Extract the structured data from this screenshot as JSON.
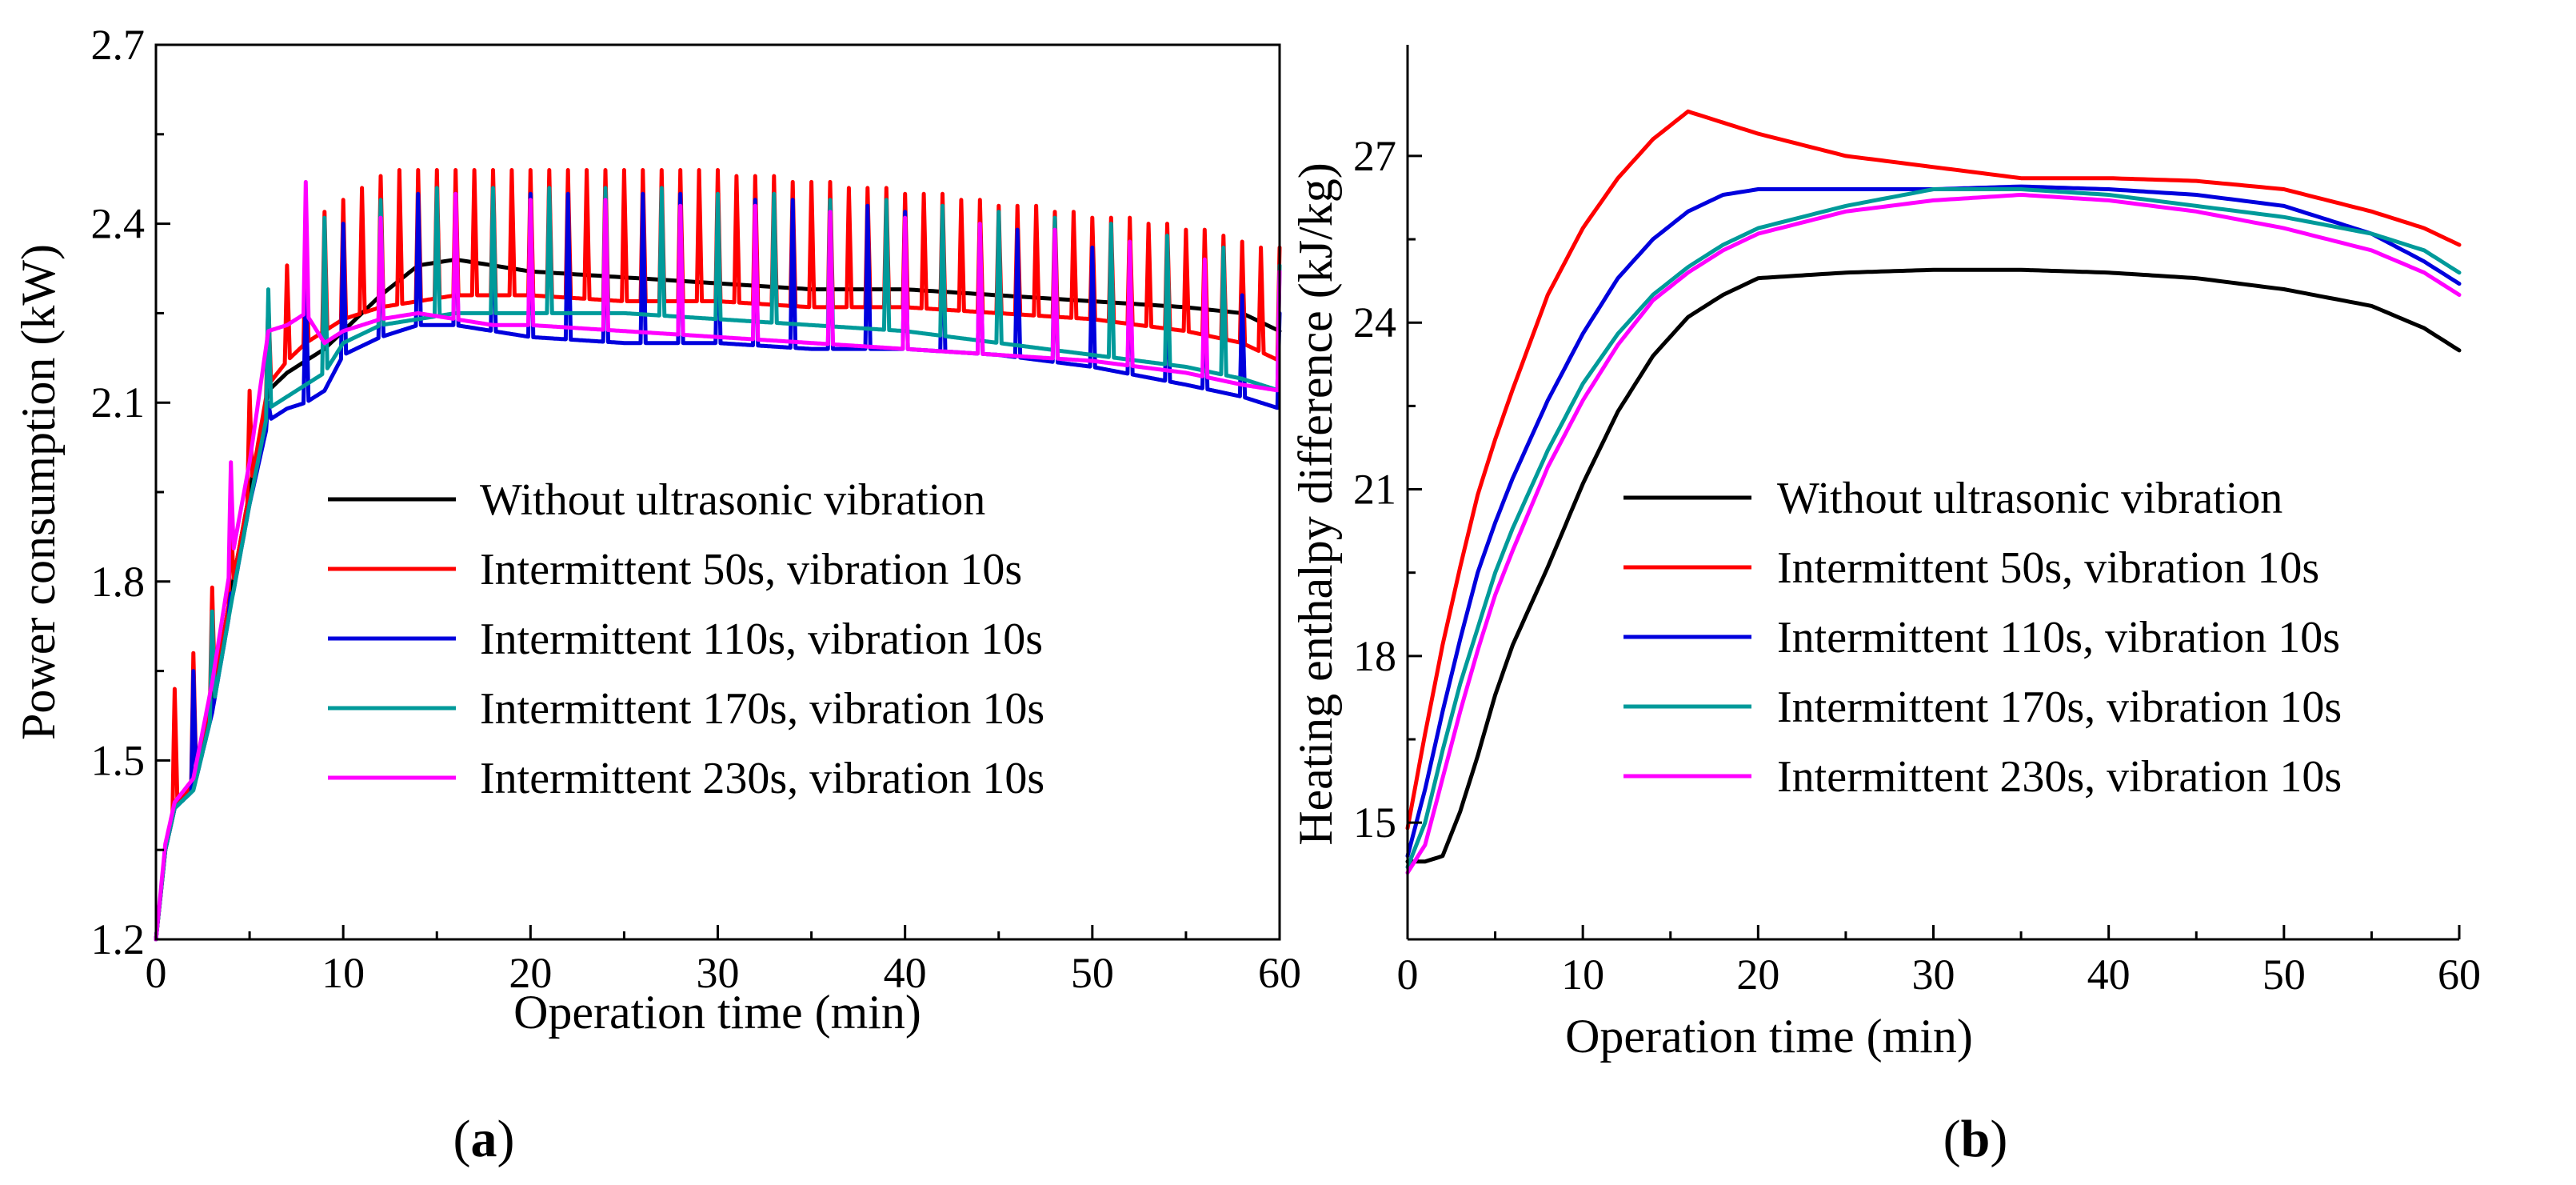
{
  "chart_data": [
    {
      "type": "line",
      "panel_label": "a",
      "title": "",
      "xlabel": "Operation time (min)",
      "ylabel": "Power consumption (kW)",
      "xlim": [
        0,
        60
      ],
      "ylim": [
        1.2,
        2.7
      ],
      "xticks": [
        0,
        10,
        20,
        30,
        40,
        50,
        60
      ],
      "yticks": [
        1.2,
        1.5,
        1.8,
        2.1,
        2.4,
        2.7
      ],
      "xtick_labels": [
        "0",
        "10",
        "20",
        "30",
        "40",
        "50",
        "60"
      ],
      "ytick_labels": [
        "1.2",
        "1.5",
        "1.8",
        "2.1",
        "2.4",
        "2.7"
      ],
      "grid": false,
      "legend_position": "center-right",
      "series": [
        {
          "name": "Without ultrasonic vibration",
          "color": "#000000",
          "x": [
            0,
            0.5,
            1,
            2,
            3,
            4,
            5,
            6,
            7,
            8,
            9,
            10,
            12,
            14,
            16,
            18,
            20,
            25,
            30,
            35,
            40,
            45,
            50,
            55,
            58,
            60
          ],
          "y": [
            1.2,
            1.35,
            1.42,
            1.46,
            1.6,
            1.78,
            1.95,
            2.12,
            2.15,
            2.17,
            2.19,
            2.22,
            2.28,
            2.33,
            2.34,
            2.33,
            2.32,
            2.31,
            2.3,
            2.29,
            2.29,
            2.28,
            2.27,
            2.26,
            2.25,
            2.22
          ]
        },
        {
          "name": "Intermittent 50s, vibration 10s",
          "color": "#ff0000",
          "spike_interval_min": 1,
          "spike_start_min": 1,
          "spike_peak": [
            1.62,
            1.68,
            1.79,
            1.92,
            2.12,
            2.27,
            2.33,
            2.38,
            2.42,
            2.44,
            2.46,
            2.48,
            2.49,
            2.49,
            2.49,
            2.49,
            2.49,
            2.49,
            2.49,
            2.49,
            2.49,
            2.49,
            2.49,
            2.49,
            2.49,
            2.49,
            2.49,
            2.49,
            2.49,
            2.49,
            2.48,
            2.48,
            2.48,
            2.47,
            2.47,
            2.47,
            2.46,
            2.46,
            2.46,
            2.45,
            2.45,
            2.45,
            2.44,
            2.44,
            2.43,
            2.43,
            2.43,
            2.42,
            2.42,
            2.41,
            2.41,
            2.41,
            2.4,
            2.4,
            2.39,
            2.39,
            2.38,
            2.37,
            2.36,
            2.36
          ],
          "x": [
            0,
            0.5,
            1,
            2,
            3,
            4,
            5,
            6,
            7,
            8,
            9,
            10,
            12,
            14,
            16,
            18,
            20,
            25,
            30,
            35,
            40,
            45,
            50,
            55,
            58,
            60
          ],
          "y": [
            1.2,
            1.35,
            1.42,
            1.46,
            1.6,
            1.78,
            1.95,
            2.13,
            2.17,
            2.2,
            2.22,
            2.24,
            2.26,
            2.27,
            2.28,
            2.28,
            2.28,
            2.27,
            2.27,
            2.26,
            2.26,
            2.25,
            2.24,
            2.22,
            2.2,
            2.17
          ]
        },
        {
          "name": "Intermittent 110s, vibration 10s",
          "color": "#0000dd",
          "spike_interval_min": 2,
          "spike_start_min": 2,
          "spike_peak": [
            1.65,
            1.78,
            2.1,
            2.3,
            2.4,
            2.42,
            2.45,
            2.45,
            2.45,
            2.45,
            2.45,
            2.45,
            2.45,
            2.45,
            2.44,
            2.44,
            2.44,
            2.43,
            2.43,
            2.42,
            2.41,
            2.4,
            2.39,
            2.38,
            2.36,
            2.35,
            2.33,
            2.31,
            2.28,
            2.25
          ],
          "x": [
            0,
            0.5,
            1,
            2,
            3,
            4,
            5,
            6,
            7,
            8,
            9,
            10,
            12,
            14,
            16,
            18,
            20,
            25,
            30,
            35,
            40,
            45,
            50,
            55,
            58,
            60
          ],
          "y": [
            1.2,
            1.35,
            1.42,
            1.45,
            1.58,
            1.76,
            1.93,
            2.07,
            2.09,
            2.1,
            2.12,
            2.18,
            2.21,
            2.23,
            2.23,
            2.22,
            2.21,
            2.2,
            2.2,
            2.19,
            2.19,
            2.18,
            2.16,
            2.13,
            2.11,
            2.09
          ]
        },
        {
          "name": "Intermittent 170s, vibration 10s",
          "color": "#009a9a",
          "spike_interval_min": 3,
          "spike_start_min": 3,
          "spike_peak": [
            1.75,
            2.29,
            2.41,
            2.44,
            2.46,
            2.46,
            2.46,
            2.46,
            2.46,
            2.45,
            2.45,
            2.44,
            2.44,
            2.43,
            2.42,
            2.41,
            2.4,
            2.38,
            2.36,
            2.33
          ],
          "x": [
            0,
            0.5,
            1,
            2,
            3,
            4,
            5,
            6,
            7,
            8,
            9,
            10,
            12,
            14,
            16,
            18,
            20,
            25,
            30,
            35,
            40,
            45,
            50,
            55,
            58,
            60
          ],
          "y": [
            1.2,
            1.35,
            1.42,
            1.45,
            1.58,
            1.76,
            1.93,
            2.09,
            2.11,
            2.13,
            2.15,
            2.2,
            2.23,
            2.24,
            2.25,
            2.25,
            2.25,
            2.25,
            2.24,
            2.23,
            2.22,
            2.2,
            2.18,
            2.16,
            2.14,
            2.12
          ]
        },
        {
          "name": "Intermittent 230s, vibration 10s",
          "color": "#ff00ff",
          "spike_interval_min": 4,
          "spike_start_min": 4,
          "spike_peak": [
            2.0,
            2.47,
            2.41,
            2.45,
            2.44,
            2.44,
            2.43,
            2.43,
            2.42,
            2.41,
            2.4,
            2.39,
            2.37,
            2.34,
            2.32
          ],
          "x": [
            0,
            0.5,
            1,
            2,
            3,
            4,
            5,
            6,
            7,
            8,
            9,
            10,
            12,
            14,
            16,
            18,
            20,
            25,
            30,
            35,
            40,
            45,
            50,
            55,
            58,
            60
          ],
          "y": [
            1.2,
            1.36,
            1.43,
            1.47,
            1.63,
            1.83,
            2.0,
            2.22,
            2.23,
            2.25,
            2.2,
            2.22,
            2.24,
            2.25,
            2.24,
            2.23,
            2.23,
            2.22,
            2.21,
            2.2,
            2.19,
            2.18,
            2.17,
            2.15,
            2.13,
            2.12
          ]
        }
      ]
    },
    {
      "type": "line",
      "panel_label": "b",
      "title": "",
      "xlabel": "Operation time (min)",
      "ylabel": "Heating enthalpy difference (kJ/kg)",
      "xlim": [
        0,
        60
      ],
      "ylim": [
        12.9,
        29
      ],
      "xticks": [
        0,
        10,
        20,
        30,
        40,
        50,
        60
      ],
      "yticks": [
        15,
        18,
        21,
        24,
        27
      ],
      "xtick_labels": [
        "0",
        "10",
        "20",
        "30",
        "40",
        "50",
        "60"
      ],
      "ytick_labels": [
        "15",
        "18",
        "21",
        "24",
        "27"
      ],
      "grid": false,
      "legend_position": "center-right",
      "series": [
        {
          "name": "Without ultrasonic vibration",
          "color": "#000000",
          "x": [
            0,
            1,
            2,
            3,
            4,
            5,
            6,
            8,
            10,
            12,
            14,
            16,
            18,
            20,
            25,
            30,
            35,
            40,
            45,
            50,
            55,
            58,
            60
          ],
          "y": [
            14.3,
            14.3,
            14.4,
            15.2,
            16.2,
            17.3,
            18.2,
            19.6,
            21.1,
            22.4,
            23.4,
            24.1,
            24.5,
            24.8,
            24.9,
            24.95,
            24.95,
            24.9,
            24.8,
            24.6,
            24.3,
            23.9,
            23.5
          ]
        },
        {
          "name": "Intermittent 50s, vibration 10s",
          "color": "#ff0000",
          "x": [
            0,
            1,
            2,
            3,
            4,
            5,
            6,
            8,
            10,
            12,
            14,
            16,
            18,
            20,
            25,
            30,
            35,
            40,
            45,
            50,
            55,
            58,
            60
          ],
          "y": [
            14.9,
            16.6,
            18.2,
            19.6,
            20.9,
            21.9,
            22.8,
            24.5,
            25.7,
            26.6,
            27.3,
            27.8,
            27.6,
            27.4,
            27.0,
            26.8,
            26.6,
            26.6,
            26.55,
            26.4,
            26.0,
            25.7,
            25.4
          ]
        },
        {
          "name": "Intermittent 110s, vibration 10s",
          "color": "#0000dd",
          "x": [
            0,
            1,
            2,
            3,
            4,
            5,
            6,
            8,
            10,
            12,
            14,
            16,
            18,
            20,
            25,
            30,
            35,
            40,
            45,
            50,
            55,
            58,
            60
          ],
          "y": [
            14.4,
            15.6,
            17.0,
            18.3,
            19.5,
            20.4,
            21.2,
            22.6,
            23.8,
            24.8,
            25.5,
            26.0,
            26.3,
            26.4,
            26.4,
            26.4,
            26.45,
            26.4,
            26.3,
            26.1,
            25.6,
            25.1,
            24.7
          ]
        },
        {
          "name": "Intermittent 170s, vibration 10s",
          "color": "#009a9a",
          "x": [
            0,
            1,
            2,
            3,
            4,
            5,
            6,
            8,
            10,
            12,
            14,
            16,
            18,
            20,
            25,
            30,
            35,
            40,
            45,
            50,
            55,
            58,
            60
          ],
          "y": [
            14.2,
            15.0,
            16.3,
            17.5,
            18.5,
            19.5,
            20.3,
            21.7,
            22.9,
            23.8,
            24.5,
            25.0,
            25.4,
            25.7,
            26.1,
            26.4,
            26.4,
            26.3,
            26.1,
            25.9,
            25.6,
            25.3,
            24.9
          ]
        },
        {
          "name": "Intermittent 230s, vibration 10s",
          "color": "#ff00ff",
          "x": [
            0,
            1,
            2,
            3,
            4,
            5,
            6,
            8,
            10,
            12,
            14,
            16,
            18,
            20,
            25,
            30,
            35,
            40,
            45,
            50,
            55,
            58,
            60
          ],
          "y": [
            14.1,
            14.6,
            15.8,
            17.0,
            18.1,
            19.1,
            19.9,
            21.4,
            22.6,
            23.6,
            24.4,
            24.9,
            25.3,
            25.6,
            26.0,
            26.2,
            26.3,
            26.2,
            26.0,
            25.7,
            25.3,
            24.9,
            24.5
          ]
        }
      ]
    }
  ]
}
